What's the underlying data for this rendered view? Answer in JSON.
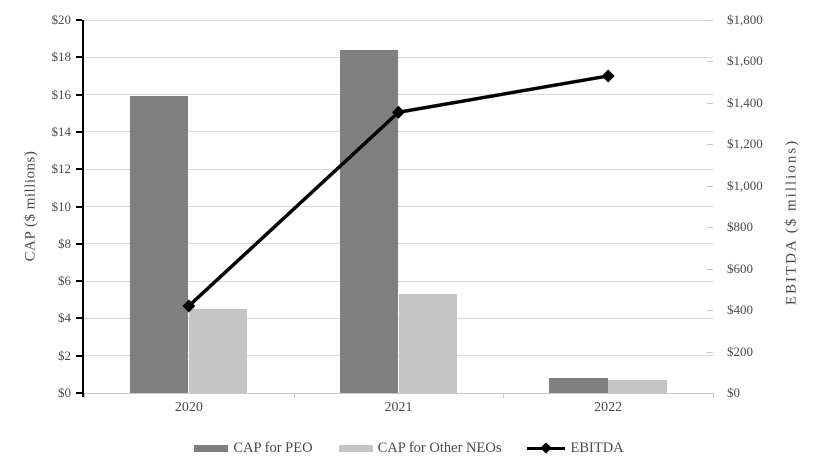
{
  "chart_data": {
    "type": "combo-bar-line",
    "categories": [
      "2020",
      "2021",
      "2022"
    ],
    "series": [
      {
        "name": "CAP for PEO",
        "type": "bar",
        "axis": "left",
        "color": "#808080",
        "values": [
          15.9,
          18.4,
          0.8
        ]
      },
      {
        "name": "CAP for Other NEOs",
        "type": "bar",
        "axis": "left",
        "color": "#c5c5c5",
        "values": [
          4.5,
          5.3,
          0.7
        ]
      },
      {
        "name": "EBITDA",
        "type": "line",
        "axis": "right",
        "color": "#000000",
        "marker": "diamond",
        "values": [
          420,
          1355,
          1530
        ]
      }
    ],
    "left_axis": {
      "title": "CAP ($ millions)",
      "min": 0,
      "max": 20,
      "step": 2,
      "tick_labels": [
        "$0",
        "$2",
        "$4",
        "$6",
        "$8",
        "$10",
        "$12",
        "$14",
        "$16",
        "$18",
        "$20"
      ]
    },
    "right_axis": {
      "title": "EBITDA ($ millions)",
      "min": 0,
      "max": 1800,
      "step": 200,
      "tick_labels": [
        "$0",
        "$200",
        "$400",
        "$600",
        "$800",
        "$1,000",
        "$1,200",
        "$1,400",
        "$1,600",
        "$1,800"
      ]
    },
    "grid": "horizontal-on",
    "legend_position": "bottom",
    "colors": {
      "gridline": "#d9d9d9",
      "left_axis_line": "#000000",
      "bottom_axis_line": "#c9c9c9",
      "tick_text": "#4a4a4a"
    }
  }
}
